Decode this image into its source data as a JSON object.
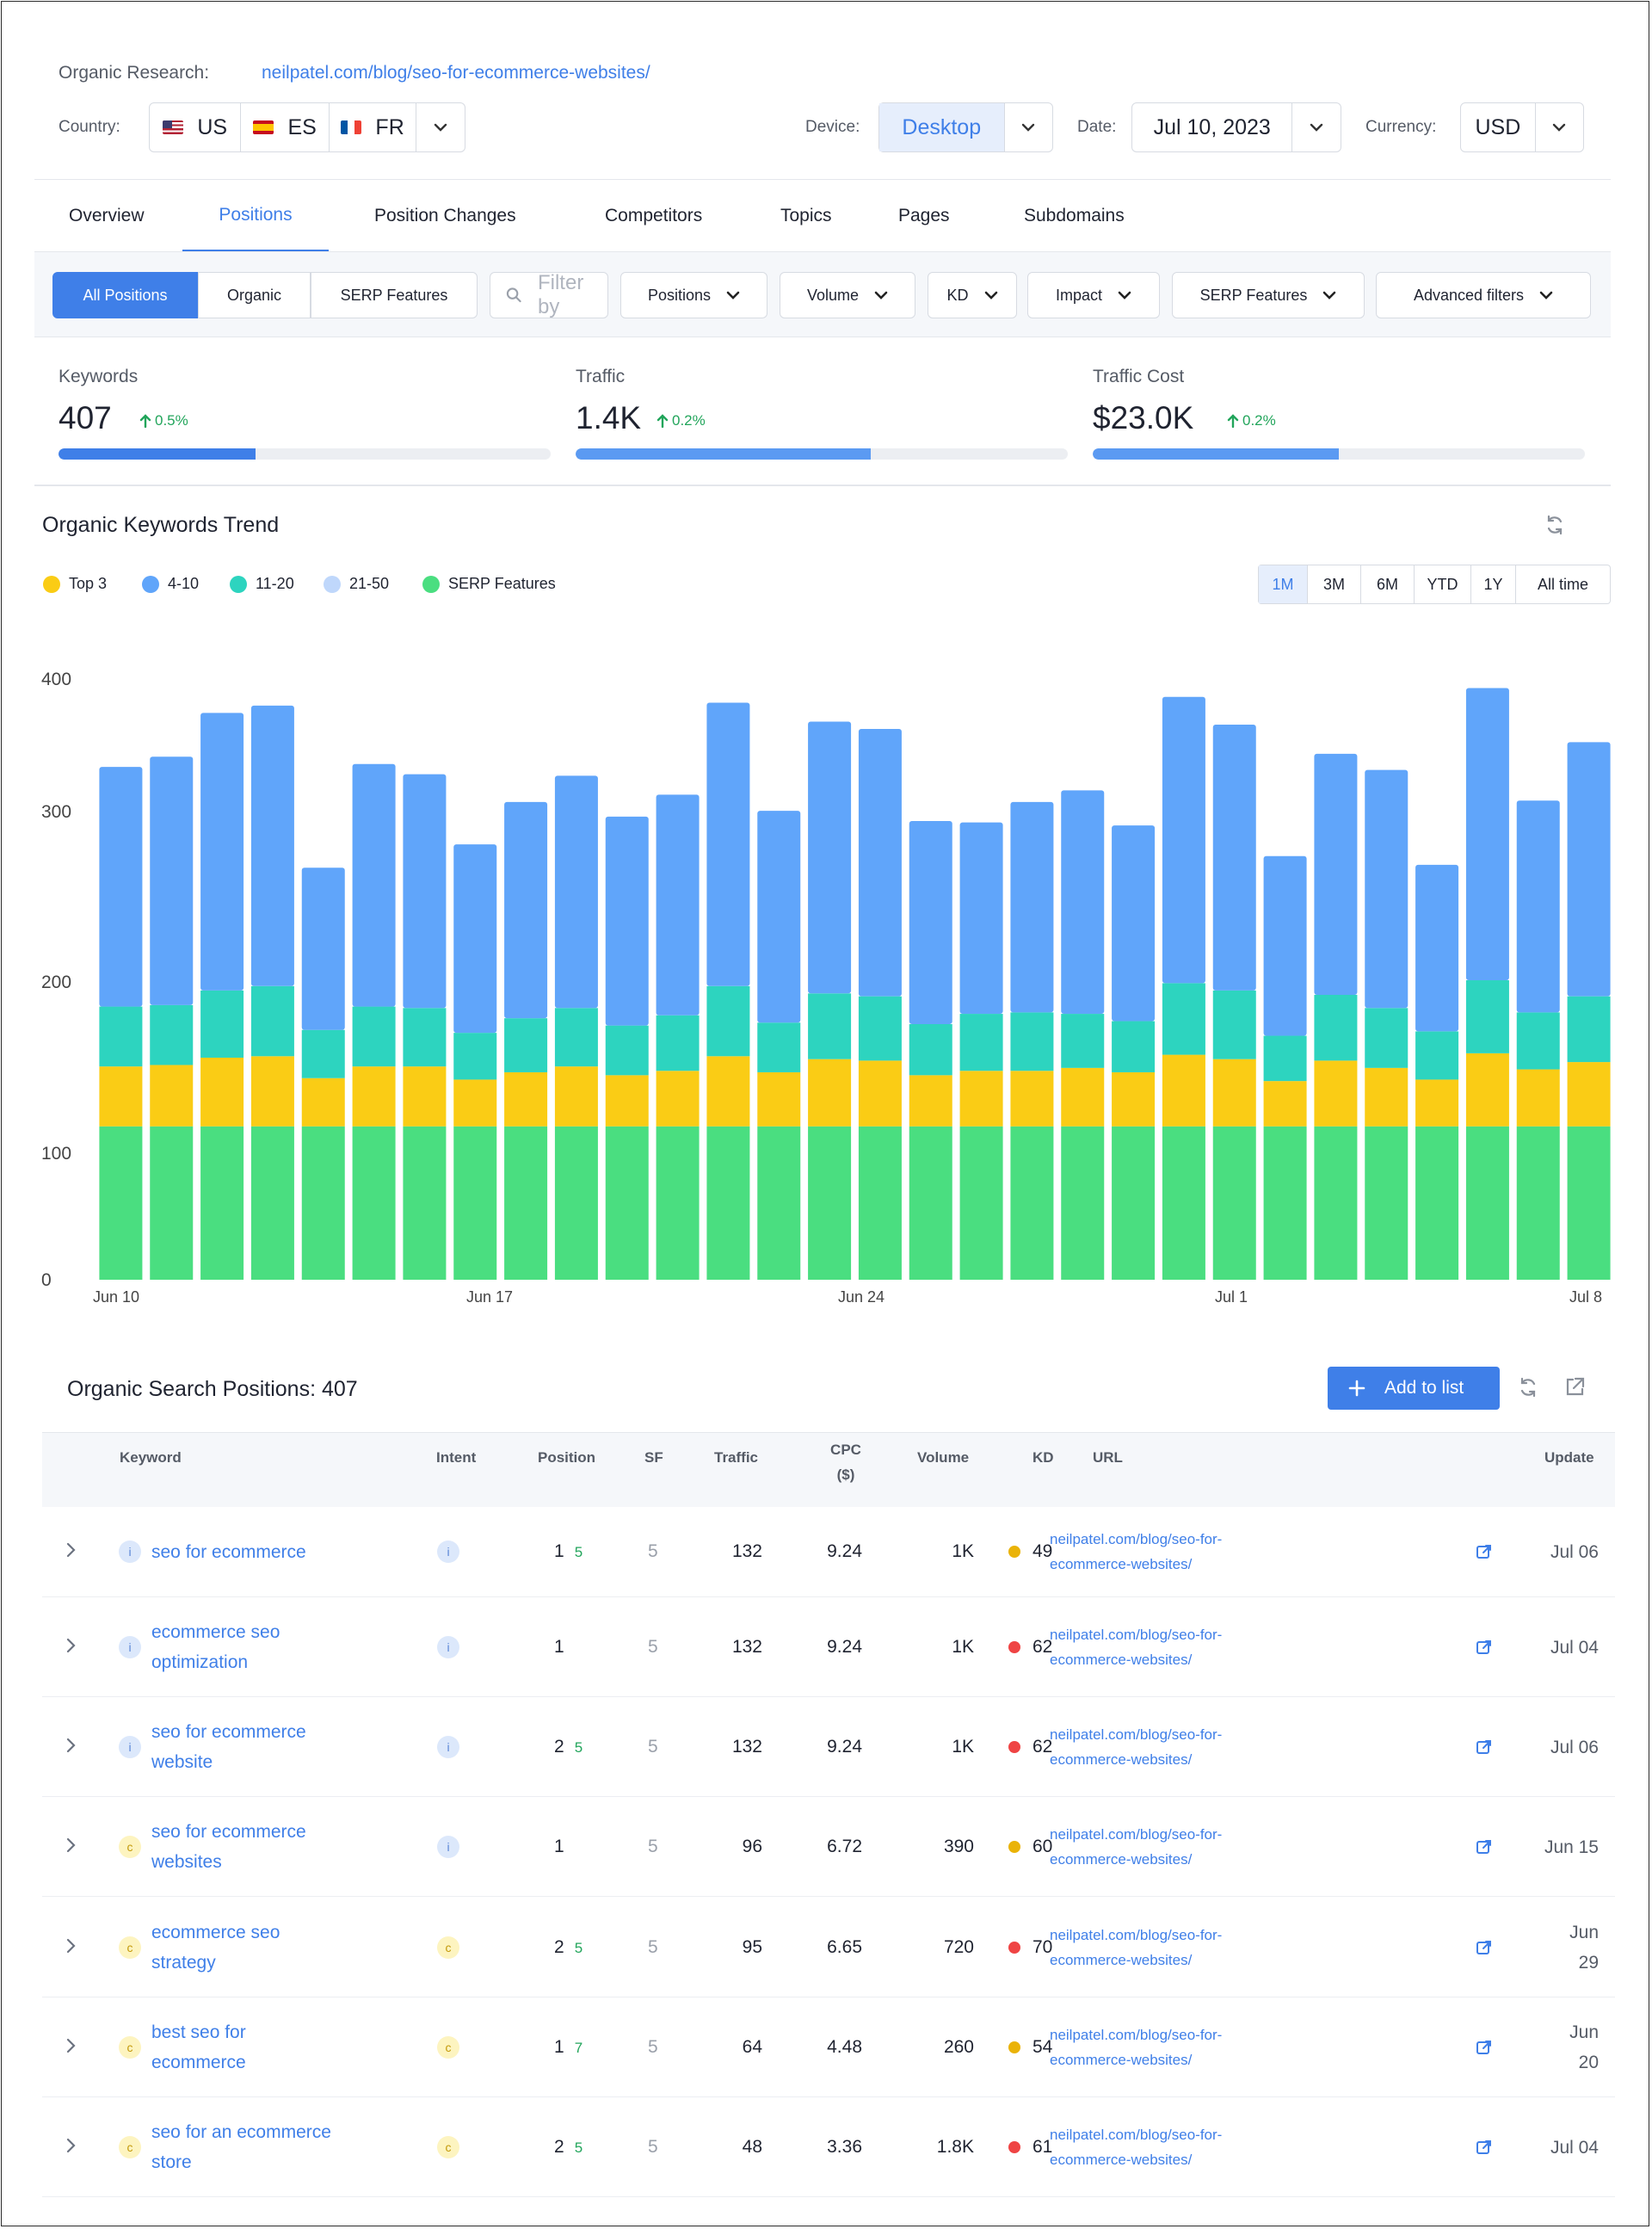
{
  "header": {
    "research_label": "Organic Research:",
    "research_url": "neilpatel.com/blog/seo-for-ecommerce-websites/",
    "country_label": "Country:",
    "countries": [
      "US",
      "ES",
      "FR"
    ],
    "device_label": "Device:",
    "device_value": "Desktop",
    "date_label": "Date:",
    "date_value": "Jul 10, 2023",
    "currency_label": "Currency:",
    "currency_value": "USD"
  },
  "tabs": [
    "Overview",
    "Positions",
    "Position Changes",
    "Competitors",
    "Topics",
    "Pages",
    "Subdomains"
  ],
  "active_tab": "Positions",
  "filters": {
    "segments": [
      "All Positions",
      "Organic",
      "SERP Features"
    ],
    "search_placeholder": "Filter by",
    "dropdowns": [
      "Positions",
      "Volume",
      "KD",
      "Impact",
      "SERP Features",
      "Advanced filters"
    ]
  },
  "kpis": [
    {
      "label": "Keywords",
      "value": "407",
      "delta": "0.5%",
      "fill": 0.4,
      "color": "#3f7fe8"
    },
    {
      "label": "Traffic",
      "value": "1.4K",
      "delta": "0.2%",
      "fill": 0.6,
      "color": "#5b9af2"
    },
    {
      "label": "Traffic Cost",
      "value": "$23.0K",
      "delta": "0.2%",
      "fill": 0.5,
      "color": "#5b9af2"
    }
  ],
  "trend": {
    "title": "Organic Keywords Trend",
    "periods": [
      "1M",
      "3M",
      "6M",
      "YTD",
      "1Y",
      "All time"
    ],
    "active_period": "1M"
  },
  "chart_data": {
    "type": "bar",
    "stacked": true,
    "categories": [
      "Jun 10",
      "Jun 11",
      "Jun 12",
      "Jun 13",
      "Jun 14",
      "Jun 15",
      "Jun 16",
      "Jun 17",
      "Jun 18",
      "Jun 19",
      "Jun 20",
      "Jun 21",
      "Jun 22",
      "Jun 23",
      "Jun 24",
      "Jun 25",
      "Jun 26",
      "Jun 27",
      "Jun 28",
      "Jun 29",
      "Jun 30",
      "Jul 1",
      "Jul 2",
      "Jul 3",
      "Jul 4",
      "Jul 5",
      "Jul 6",
      "Jul 7",
      "Jul 8",
      "Jul 9"
    ],
    "xtick_labels": [
      "Jun 10",
      "Jun 17",
      "Jun 24",
      "Jul 1",
      "Jul 8"
    ],
    "yticks": [
      0,
      100,
      200,
      300,
      400
    ],
    "ylim": [
      0,
      420
    ],
    "series": [
      {
        "name": "SERP Features",
        "color": "#4ade80",
        "values": [
          105,
          105,
          105,
          105,
          105,
          105,
          105,
          105,
          105,
          105,
          105,
          105,
          105,
          105,
          105,
          105,
          105,
          105,
          105,
          105,
          105,
          105,
          105,
          105,
          105,
          105,
          105,
          105,
          105,
          105
        ]
      },
      {
        "name": "Top 3",
        "color": "#facc15",
        "values": [
          41,
          42,
          47,
          48,
          33,
          41,
          41,
          32,
          37,
          41,
          35,
          38,
          48,
          37,
          46,
          45,
          35,
          38,
          38,
          40,
          37,
          49,
          46,
          31,
          45,
          40,
          32,
          50,
          39,
          44
        ]
      },
      {
        "name": "11-20",
        "color": "#2dd4bf",
        "values": [
          41,
          41,
          46,
          48,
          33,
          41,
          40,
          32,
          37,
          40,
          34,
          38,
          48,
          34,
          45,
          44,
          35,
          39,
          40,
          37,
          35,
          49,
          47,
          31,
          45,
          41,
          33,
          50,
          39,
          45
        ]
      },
      {
        "name": "4-10",
        "color": "#60a5fa",
        "values": [
          164,
          170,
          190,
          192,
          111,
          166,
          160,
          129,
          148,
          159,
          143,
          151,
          194,
          145,
          186,
          183,
          139,
          131,
          144,
          153,
          134,
          196,
          182,
          123,
          165,
          163,
          114,
          200,
          145,
          174
        ]
      }
    ],
    "legend": [
      "Top 3",
      "4-10",
      "11-20",
      "21-50",
      "SERP Features"
    ],
    "legend_colors": [
      "#facc15",
      "#60a5fa",
      "#2dd4bf",
      "#bfd7fb",
      "#4ade80"
    ]
  },
  "positions_table": {
    "title": "Organic Search Positions: 407",
    "add_label": "Add to list",
    "columns": [
      "Keyword",
      "Intent",
      "Position",
      "SF",
      "Traffic",
      "CPC ($)",
      "Volume",
      "KD",
      "URL",
      "Update"
    ],
    "rows": [
      {
        "kw": [
          "seo for ecommerce"
        ],
        "kwintent": "i",
        "intent": "i",
        "pos": "1",
        "chg": "5",
        "sf": "5",
        "traffic": "132",
        "cpc": "9.24",
        "volume": "1K",
        "kd": "49",
        "kdcolor": "#eab308",
        "url": [
          "neilpatel.com/blog/seo-for-",
          "ecommerce-websites/"
        ],
        "update": [
          "Jul 06"
        ]
      },
      {
        "kw": [
          "ecommerce seo",
          "optimization"
        ],
        "kwintent": "i",
        "intent": "i",
        "pos": "1",
        "chg": "",
        "sf": "5",
        "traffic": "132",
        "cpc": "9.24",
        "volume": "1K",
        "kd": "62",
        "kdcolor": "#ef4444",
        "url": [
          "neilpatel.com/blog/seo-for-",
          "ecommerce-websites/"
        ],
        "update": [
          "Jul 04"
        ]
      },
      {
        "kw": [
          "seo for ecommerce",
          "website"
        ],
        "kwintent": "i",
        "intent": "i",
        "pos": "2",
        "chg": "5",
        "sf": "5",
        "traffic": "132",
        "cpc": "9.24",
        "volume": "1K",
        "kd": "62",
        "kdcolor": "#ef4444",
        "url": [
          "neilpatel.com/blog/seo-for-",
          "ecommerce-websites/"
        ],
        "update": [
          "Jul 06"
        ]
      },
      {
        "kw": [
          "seo for ecommerce",
          "websites"
        ],
        "kwintent": "c",
        "intent": "i",
        "pos": "1",
        "chg": "",
        "sf": "5",
        "traffic": "96",
        "cpc": "6.72",
        "volume": "390",
        "kd": "60",
        "kdcolor": "#eab308",
        "url": [
          "neilpatel.com/blog/seo-for-",
          "ecommerce-websites/"
        ],
        "update": [
          "Jun 15"
        ]
      },
      {
        "kw": [
          "ecommerce seo",
          "strategy"
        ],
        "kwintent": "c",
        "intent": "c",
        "pos": "2",
        "chg": "5",
        "sf": "5",
        "traffic": "95",
        "cpc": "6.65",
        "volume": "720",
        "kd": "70",
        "kdcolor": "#ef4444",
        "url": [
          "neilpatel.com/blog/seo-for-",
          "ecommerce-websites/"
        ],
        "update": [
          "Jun",
          "29"
        ]
      },
      {
        "kw": [
          "best seo for",
          "ecommerce"
        ],
        "kwintent": "c",
        "intent": "c",
        "pos": "1",
        "chg": "7",
        "sf": "5",
        "traffic": "64",
        "cpc": "4.48",
        "volume": "260",
        "kd": "54",
        "kdcolor": "#eab308",
        "url": [
          "neilpatel.com/blog/seo-for-",
          "ecommerce-websites/"
        ],
        "update": [
          "Jun",
          "20"
        ]
      },
      {
        "kw": [
          "seo for an ecommerce",
          "store"
        ],
        "kwintent": "c",
        "intent": "c",
        "pos": "2",
        "chg": "5",
        "sf": "5",
        "traffic": "48",
        "cpc": "3.36",
        "volume": "1.8K",
        "kd": "61",
        "kdcolor": "#ef4444",
        "url": [
          "neilpatel.com/blog/seo-for-",
          "ecommerce-websites/"
        ],
        "update": [
          "Jul 04"
        ]
      }
    ]
  }
}
